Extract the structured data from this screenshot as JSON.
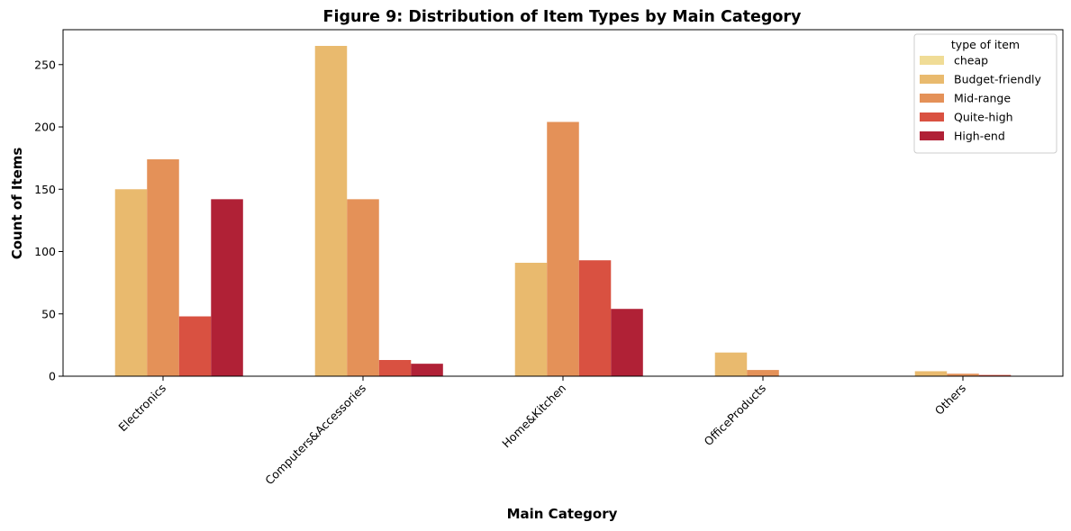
{
  "chart_data": {
    "type": "bar",
    "title": "Figure 9: Distribution of Item Types by Main Category",
    "xlabel": "Main Category",
    "ylabel": "Count of Items",
    "categories": [
      "Electronics",
      "Computers&Accessories",
      "Home&Kitchen",
      "OfficeProducts",
      "Others"
    ],
    "ylim": [
      0,
      278
    ],
    "yticks": [
      0,
      50,
      100,
      150,
      200,
      250
    ],
    "legend": {
      "title": "type of item",
      "position": "top-right"
    },
    "series": [
      {
        "name": "cheap",
        "color": "#f0dc96",
        "values": [
          0,
          0,
          0,
          0,
          0
        ]
      },
      {
        "name": "Budget-friendly",
        "color": "#e9ba6e",
        "values": [
          150,
          265,
          91,
          19,
          4
        ]
      },
      {
        "name": "Mid-range",
        "color": "#e49158",
        "values": [
          174,
          142,
          204,
          5,
          2
        ]
      },
      {
        "name": "Quite-high",
        "color": "#d95141",
        "values": [
          48,
          13,
          93,
          0,
          1
        ]
      },
      {
        "name": "High-end",
        "color": "#b02136",
        "values": [
          142,
          10,
          54,
          0,
          0
        ]
      }
    ]
  }
}
